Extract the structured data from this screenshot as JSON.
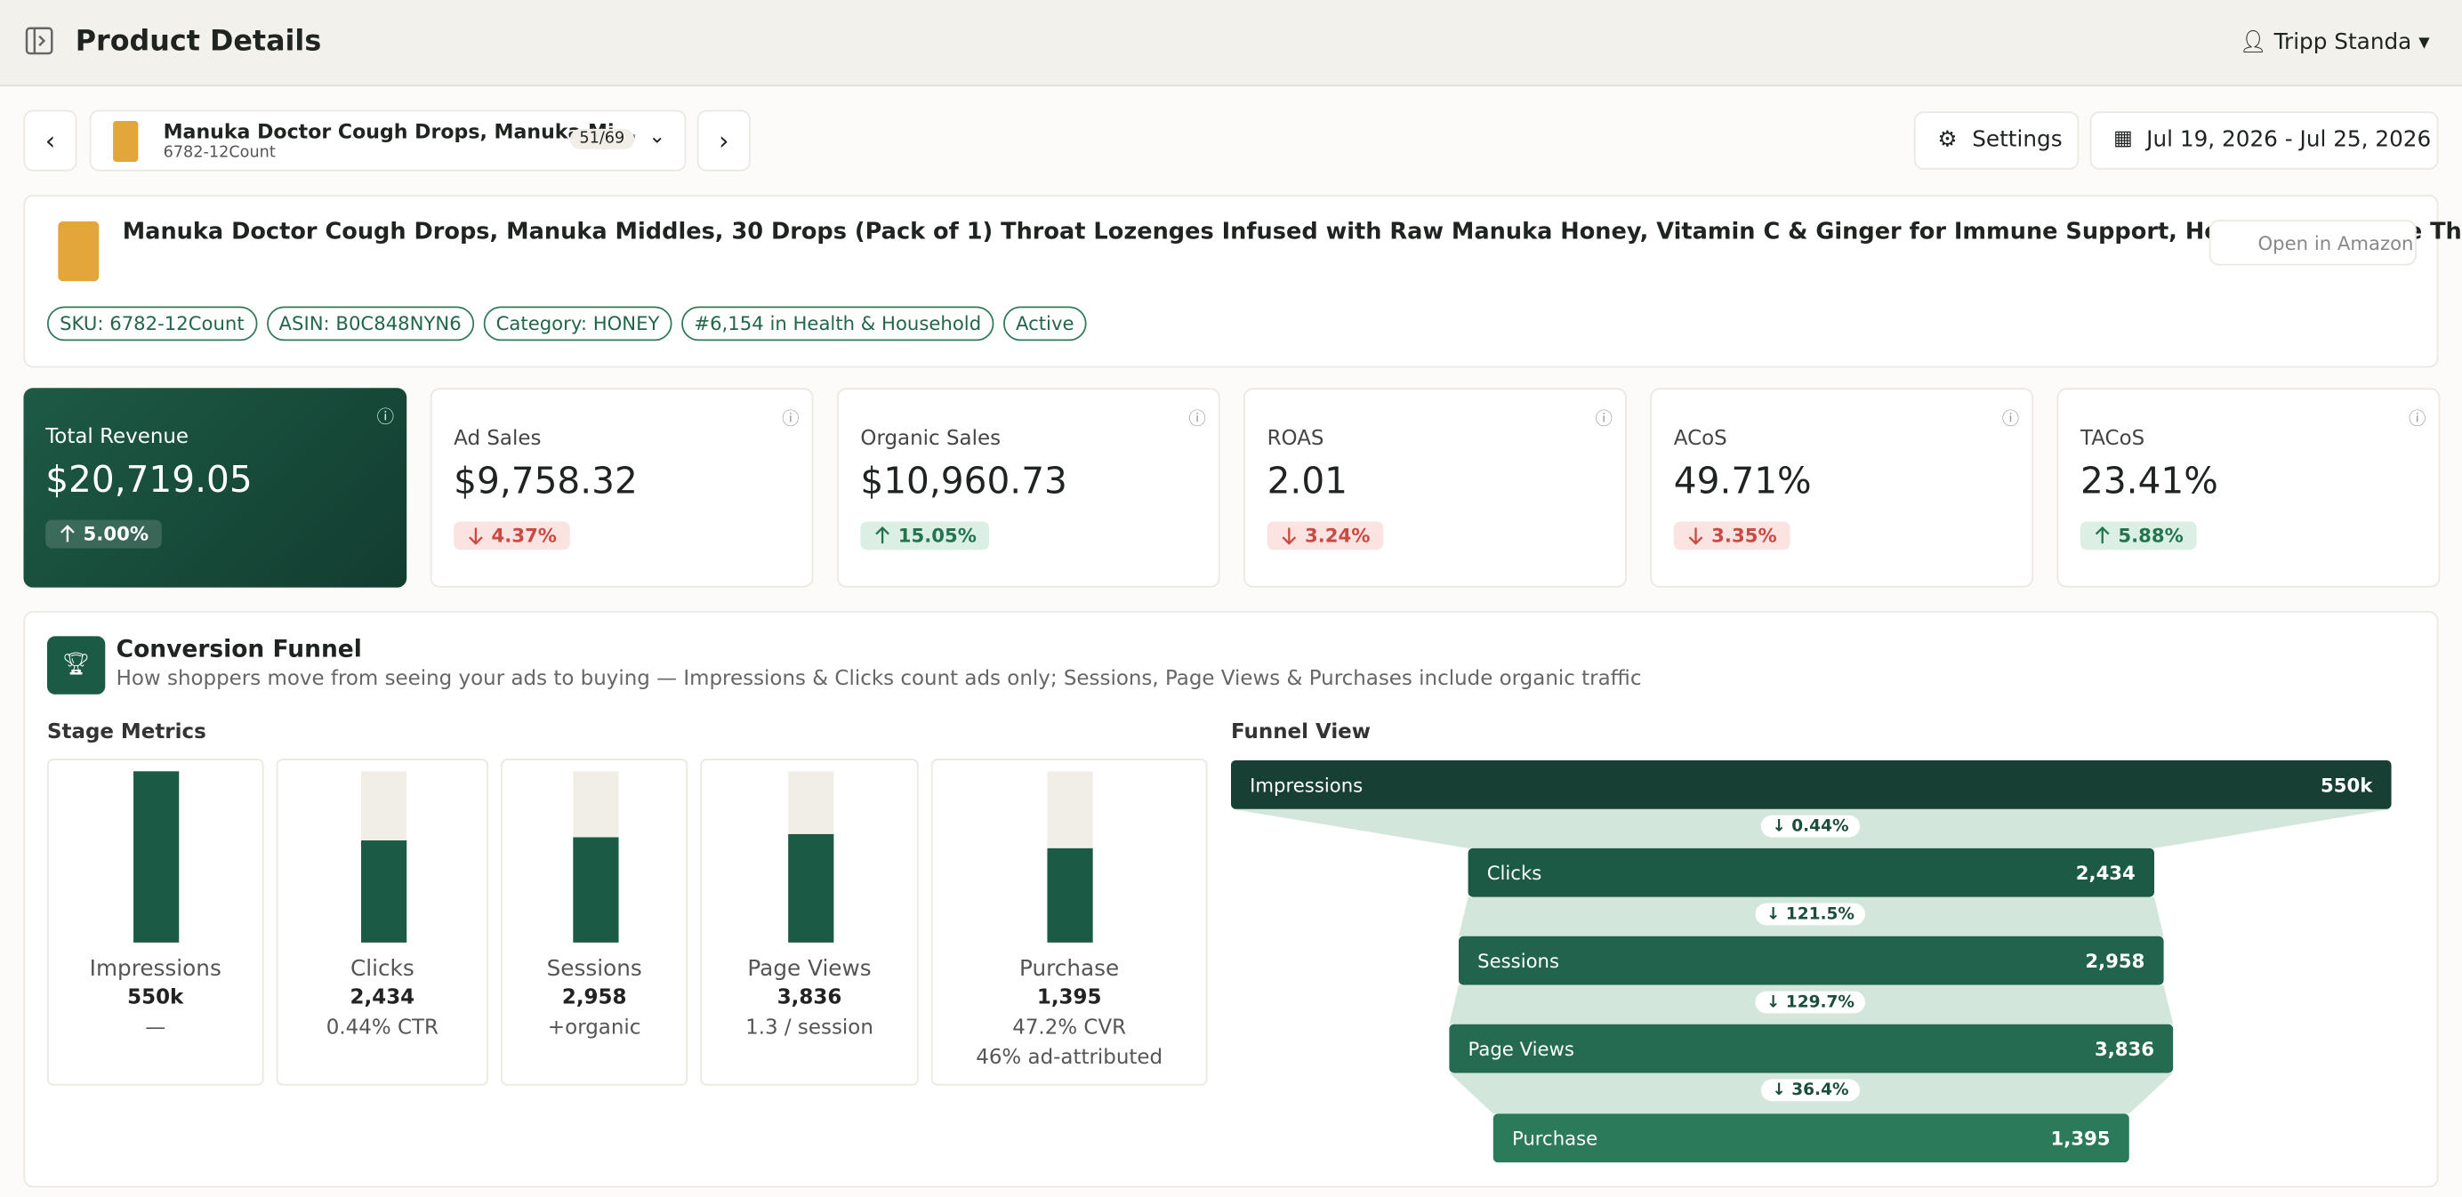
{
  "header": {
    "title": "Product Details",
    "user": "Tripp Standa"
  },
  "toolbar": {
    "product_name": "Manuka Doctor Cough Drops, Manuka Mi...",
    "product_sku": "6782-12Count",
    "position": "51/69",
    "settings": "Settings",
    "date_range": "Jul 19, 2026 - Jul 25, 2026"
  },
  "product": {
    "title": "Manuka Doctor Cough Drops, Manuka Middles, 30 Drops (Pack of 1) Throat Lozenges Infused with Raw Manuka Honey, Vitamin C & Ginger for Immune Support, Helps Soothe Sore Throat",
    "open_button": "Open in Amazon",
    "badges": [
      "SKU: 6782-12Count",
      "ASIN: B0C848NYN6",
      "Category: HONEY",
      "#6,154 in Health & Household",
      "Active"
    ]
  },
  "kpis": [
    {
      "label": "Total Revenue",
      "value": "$20,719.05",
      "change": "5.00%",
      "direction": "up"
    },
    {
      "label": "Ad Sales",
      "value": "$9,758.32",
      "change": "4.37%",
      "direction": "down"
    },
    {
      "label": "Organic Sales",
      "value": "$10,960.73",
      "change": "15.05%",
      "direction": "up"
    },
    {
      "label": "ROAS",
      "value": "2.01",
      "change": "3.24%",
      "direction": "down"
    },
    {
      "label": "ACoS",
      "value": "49.71%",
      "change": "3.35%",
      "direction": "down"
    },
    {
      "label": "TACoS",
      "value": "23.41%",
      "change": "5.88%",
      "direction": "up"
    }
  ],
  "funnel": {
    "title": "Conversion Funnel",
    "subtitle": "How shoppers move from seeing your ads to buying — Impressions & Clicks count ads only; Sessions, Page Views & Purchases include organic traffic",
    "stage_title": "Stage Metrics",
    "view_title": "Funnel View",
    "stages": [
      {
        "name": "Impressions",
        "value": "550k",
        "notes": [
          "—"
        ]
      },
      {
        "name": "Clicks",
        "value": "2,434",
        "notes": [
          "0.44% CTR"
        ]
      },
      {
        "name": "Sessions",
        "value": "2,958",
        "notes": [
          "+organic"
        ]
      },
      {
        "name": "Page Views",
        "value": "3,836",
        "notes": [
          "1.3 / session"
        ]
      },
      {
        "name": "Purchase",
        "value": "1,395",
        "notes": [
          "47.2% CVR",
          "46% ad-attributed"
        ]
      }
    ],
    "drops": [
      "0.44%",
      "121.5%",
      "129.7%",
      "36.4%"
    ]
  }
}
